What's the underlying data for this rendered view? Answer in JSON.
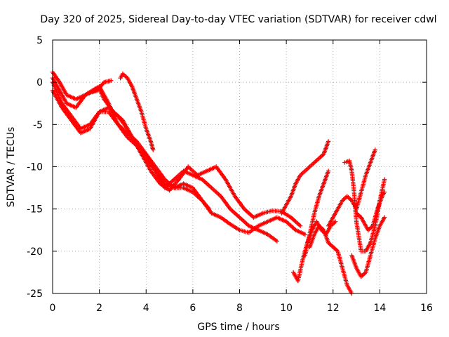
{
  "chart_data": {
    "type": "scatter",
    "title": "Day 320 of 2025, Sidereal Day-to-day VTEC variation (SDTVAR) for receiver cdwl",
    "xlabel": "GPS time / hours",
    "ylabel": "SDTVAR / TECUs",
    "xlim": [
      0,
      16
    ],
    "ylim": [
      -25,
      5
    ],
    "x_ticks": [
      "0",
      "2",
      "4",
      "6",
      "8",
      "10",
      "12",
      "14",
      "16"
    ],
    "y_ticks": [
      "5",
      "0",
      "-5",
      "-10",
      "-15",
      "-20",
      "-25"
    ],
    "x_tick_values": [
      0,
      2,
      4,
      6,
      8,
      10,
      12,
      14,
      16
    ],
    "y_tick_values": [
      5,
      0,
      -5,
      -10,
      -15,
      -20,
      -25
    ],
    "grid": true,
    "marker": "plus",
    "color": "#ff0000",
    "series": [
      {
        "x": [
          0,
          0.3,
          0.6,
          1.0,
          1.4,
          1.8,
          2.0,
          2.4,
          2.8,
          3.2,
          3.6,
          4.0,
          4.4,
          4.8,
          5.2,
          5.6,
          6.0,
          6.4,
          6.8,
          7.2,
          7.6,
          8.0,
          8.4,
          8.8,
          9.2,
          9.6
        ],
        "y": [
          0.5,
          -1.0,
          -2.5,
          -3.0,
          -1.5,
          -0.8,
          -0.5,
          -2.5,
          -5.0,
          -6.5,
          -7.5,
          -8.5,
          -10.5,
          -12.5,
          -11.5,
          -10.5,
          -11.0,
          -11.5,
          -12.5,
          -13.5,
          -15.0,
          -16.0,
          -17.0,
          -17.5,
          -18.0,
          -18.8
        ]
      },
      {
        "x": [
          0,
          0.3,
          0.6,
          1.0,
          1.4,
          1.8,
          2.0,
          2.2,
          2.6,
          3.0,
          3.4,
          3.8,
          4.2,
          4.6,
          5.0,
          5.4,
          5.8,
          6.2,
          6.6,
          7.0,
          7.4,
          7.8,
          8.2,
          8.6,
          9.0,
          9.4,
          9.8,
          10.2,
          10.6
        ],
        "y": [
          1.2,
          0,
          -1.5,
          -2.0,
          -1.5,
          -1.0,
          -0.8,
          -2.0,
          -3.5,
          -4.5,
          -6.5,
          -8.5,
          -10.5,
          -12.0,
          -12.8,
          -11.5,
          -10.0,
          -11.0,
          -10.5,
          -10.0,
          -11.5,
          -13.5,
          -15.0,
          -16.0,
          -15.5,
          -15.2,
          -15.3,
          -16.0,
          -17.0
        ]
      },
      {
        "x": [
          0,
          0.4,
          0.8,
          1.2,
          1.6,
          2.0,
          2.4,
          2.8,
          3.2,
          3.6,
          4.0,
          4.4,
          4.8,
          5.2,
          5.6,
          6.0,
          6.4,
          6.8,
          7.2,
          7.6,
          8.0,
          8.4,
          8.8,
          9.2,
          9.6,
          10.0,
          10.4,
          10.8
        ],
        "y": [
          0,
          -2.5,
          -4.0,
          -5.5,
          -5.0,
          -3.5,
          -3.5,
          -5.0,
          -6.0,
          -7.0,
          -8.5,
          -10.0,
          -11.5,
          -12.5,
          -12.0,
          -12.5,
          -14.0,
          -15.5,
          -16.0,
          -16.8,
          -17.5,
          -17.8,
          -17.0,
          -16.5,
          -16.0,
          -16.5,
          -17.5,
          -18.0
        ]
      },
      {
        "x": [
          0,
          0.4,
          0.8,
          1.2,
          1.6,
          2.0,
          2.4,
          2.8,
          3.2,
          3.6,
          4.0,
          4.4,
          4.8,
          5.2,
          5.6,
          6.0,
          6.4,
          6.7
        ],
        "y": [
          -1.0,
          -3.0,
          -4.5,
          -6.0,
          -5.5,
          -3.5,
          -3.0,
          -4.0,
          -5.5,
          -7.5,
          -9.0,
          -10.5,
          -12.0,
          -12.5,
          -12.5,
          -13.0,
          -14.0,
          -15.0
        ]
      },
      {
        "x": [
          1.5,
          1.9,
          2.2,
          2.5
        ],
        "y": [
          -1.3,
          -1.0,
          0,
          0.2
        ]
      },
      {
        "x": [
          2.9,
          3.0,
          3.2,
          3.4,
          3.6,
          3.8,
          4.0,
          4.2,
          4.3
        ],
        "y": [
          0.5,
          1.0,
          0.5,
          -0.5,
          -2.0,
          -3.5,
          -5.5,
          -7.0,
          -8.0
        ]
      },
      {
        "x": [
          9.8,
          10.2,
          10.4,
          10.6,
          10.8,
          11.0,
          11.2,
          11.4,
          11.6,
          11.8
        ],
        "y": [
          -15.5,
          -13.5,
          -12.0,
          -11.0,
          -10.5,
          -10.0,
          -9.5,
          -9.0,
          -8.5,
          -7.0
        ]
      },
      {
        "x": [
          10.8,
          11.0,
          11.2,
          11.4,
          11.6,
          11.8
        ],
        "y": [
          -20.5,
          -18.0,
          -15.5,
          -13.5,
          -12.0,
          -10.5
        ]
      },
      {
        "x": [
          10.3,
          10.5,
          10.7,
          10.9,
          11.1,
          11.3,
          11.5,
          11.7,
          11.9,
          12.1
        ],
        "y": [
          -22.5,
          -23.5,
          -21.0,
          -19.0,
          -17.5,
          -16.5,
          -17.5,
          -18.0,
          -17.0,
          -16.5
        ]
      },
      {
        "x": [
          11.0,
          11.2,
          11.4,
          11.6,
          11.8,
          12.0,
          12.2,
          12.4,
          12.6,
          12.8
        ],
        "y": [
          -19.5,
          -18.0,
          -17.0,
          -17.5,
          -19.0,
          -19.5,
          -20.0,
          -22.0,
          -24.0,
          -25.0
        ]
      },
      {
        "x": [
          11.8,
          12.0,
          12.2,
          12.4,
          12.6,
          12.8,
          13.0,
          13.2,
          13.4,
          13.6,
          13.8
        ],
        "y": [
          -17.0,
          -16.0,
          -15.0,
          -14.0,
          -13.5,
          -14.0,
          -15.0,
          -13.0,
          -11.0,
          -9.5,
          -8.0
        ]
      },
      {
        "x": [
          12.5,
          12.7,
          12.8,
          12.9,
          13.0,
          13.2,
          13.4,
          13.6,
          13.8,
          14.0,
          14.2
        ],
        "y": [
          -9.5,
          -9.3,
          -10.5,
          -13.0,
          -16.5,
          -20.0,
          -20.0,
          -19.0,
          -17.0,
          -14.0,
          -11.5
        ]
      },
      {
        "x": [
          12.8,
          13.0,
          13.2,
          13.4,
          13.6,
          13.8,
          14.0,
          14.2
        ],
        "y": [
          -20.5,
          -22.0,
          -23.0,
          -22.5,
          -20.5,
          -18.5,
          -17.0,
          -16.0
        ]
      },
      {
        "x": [
          13.0,
          13.2,
          13.5,
          13.7,
          13.9,
          14.1,
          14.2
        ],
        "y": [
          -15.5,
          -16.0,
          -17.5,
          -17.0,
          -15.0,
          -13.5,
          -13.0
        ]
      }
    ]
  }
}
